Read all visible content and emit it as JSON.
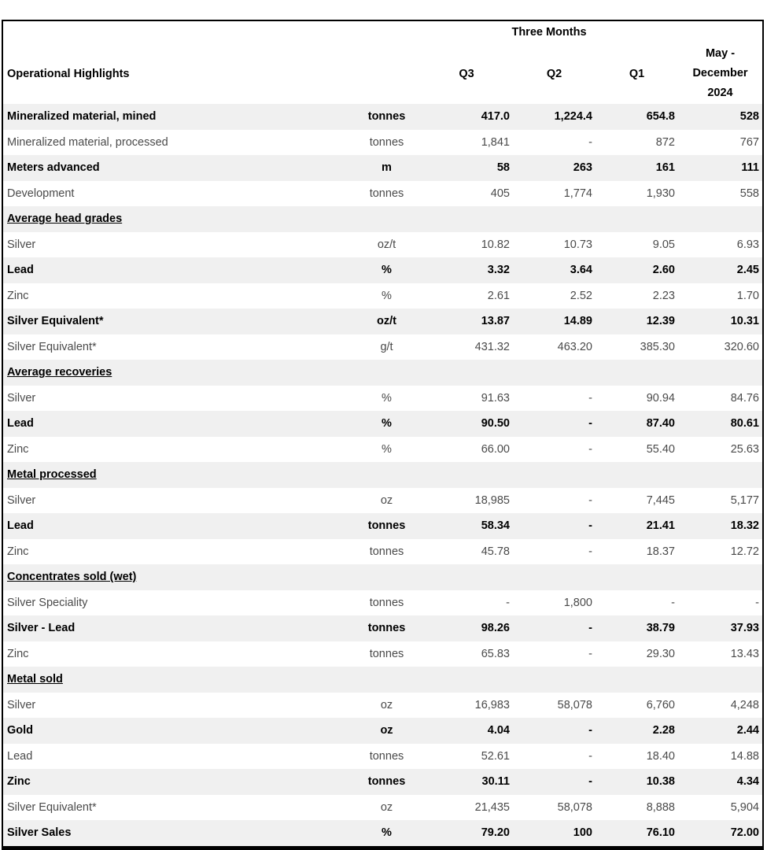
{
  "colors": {
    "stripe": "#f0f0f0",
    "regular_text": "#4a4a4a",
    "strong_text": "#000000",
    "border": "#000000"
  },
  "table": {
    "span_header": "Three Months",
    "header": {
      "label": "Operational Highlights",
      "unit": "",
      "q3": "Q3",
      "q2": "Q2",
      "q1": "Q1",
      "period_lines": [
        "May -",
        "December",
        "2024"
      ]
    },
    "rows": [
      {
        "type": "data",
        "label": "Mineralized material, mined",
        "unit": "tonnes",
        "values": [
          "417.0",
          "1,224.4",
          "654.8",
          "528"
        ],
        "strong": true
      },
      {
        "type": "data",
        "label": "Mineralized material, processed",
        "unit": "tonnes",
        "values": [
          "1,841",
          "-",
          "872",
          "767"
        ],
        "strong": false
      },
      {
        "type": "data",
        "label": "Meters advanced",
        "unit": "m",
        "values": [
          "58",
          "263",
          "161",
          "111"
        ],
        "strong": true
      },
      {
        "type": "data",
        "label": "Development",
        "unit": "tonnes",
        "values": [
          "405",
          "1,774",
          "1,930",
          "558"
        ],
        "strong": false
      },
      {
        "type": "section",
        "label": "Average head grades"
      },
      {
        "type": "data",
        "label": "Silver",
        "unit": "oz/t",
        "values": [
          "10.82",
          "10.73",
          "9.05",
          "6.93"
        ],
        "strong": false
      },
      {
        "type": "data",
        "label": "Lead",
        "unit": "%",
        "values": [
          "3.32",
          "3.64",
          "2.60",
          "2.45"
        ],
        "strong": true
      },
      {
        "type": "data",
        "label": "Zinc",
        "unit": "%",
        "values": [
          "2.61",
          "2.52",
          "2.23",
          "1.70"
        ],
        "strong": false
      },
      {
        "type": "data",
        "label": "Silver Equivalent*",
        "unit": "oz/t",
        "values": [
          "13.87",
          "14.89",
          "12.39",
          "10.31"
        ],
        "strong": true
      },
      {
        "type": "data",
        "label": "Silver Equivalent*",
        "unit": "g/t",
        "values": [
          "431.32",
          "463.20",
          "385.30",
          "320.60"
        ],
        "strong": false
      },
      {
        "type": "section",
        "label": "Average recoveries"
      },
      {
        "type": "data",
        "label": "Silver",
        "unit": "%",
        "values": [
          "91.63",
          "-",
          "90.94",
          "84.76"
        ],
        "strong": false
      },
      {
        "type": "data",
        "label": "Lead",
        "unit": "%",
        "values": [
          "90.50",
          "-",
          "87.40",
          "80.61"
        ],
        "strong": true
      },
      {
        "type": "data",
        "label": "Zinc",
        "unit": "%",
        "values": [
          "66.00",
          "-",
          "55.40",
          "25.63"
        ],
        "strong": false
      },
      {
        "type": "section",
        "label": "Metal processed"
      },
      {
        "type": "data",
        "label": "Silver",
        "unit": "oz",
        "values": [
          "18,985",
          "-",
          "7,445",
          "5,177"
        ],
        "strong": false
      },
      {
        "type": "data",
        "label": "Lead",
        "unit": "tonnes",
        "values": [
          "58.34",
          "-",
          "21.41",
          "18.32"
        ],
        "strong": true
      },
      {
        "type": "data",
        "label": "Zinc",
        "unit": "tonnes",
        "values": [
          "45.78",
          "-",
          "18.37",
          "12.72"
        ],
        "strong": false
      },
      {
        "type": "section",
        "label": "Concentrates sold (wet)"
      },
      {
        "type": "data",
        "label": "Silver Speciality",
        "unit": "tonnes",
        "values": [
          "-",
          "1,800",
          "-",
          "-"
        ],
        "strong": false
      },
      {
        "type": "data",
        "label": "Silver - Lead",
        "unit": "tonnes",
        "values": [
          "98.26",
          "-",
          "38.79",
          "37.93"
        ],
        "strong": true
      },
      {
        "type": "data",
        "label": "Zinc",
        "unit": "tonnes",
        "values": [
          "65.83",
          "-",
          "29.30",
          "13.43"
        ],
        "strong": false
      },
      {
        "type": "section",
        "label": "Metal sold"
      },
      {
        "type": "data",
        "label": "Silver",
        "unit": "oz",
        "values": [
          "16,983",
          "58,078",
          "6,760",
          "4,248"
        ],
        "strong": false
      },
      {
        "type": "data",
        "label": "Gold",
        "unit": "oz",
        "values": [
          "4.04",
          "-",
          "2.28",
          "2.44"
        ],
        "strong": true
      },
      {
        "type": "data",
        "label": "Lead",
        "unit": "tonnes",
        "values": [
          "52.61",
          "-",
          "18.40",
          "14.88"
        ],
        "strong": false
      },
      {
        "type": "data",
        "label": "Zinc",
        "unit": "tonnes",
        "values": [
          "30.11",
          "-",
          "10.38",
          "4.34"
        ],
        "strong": true
      },
      {
        "type": "data",
        "label": "Silver Equivalent*",
        "unit": "oz",
        "values": [
          "21,435",
          "58,078",
          "8,888",
          "5,904"
        ],
        "strong": false
      },
      {
        "type": "data",
        "label": "Silver Sales",
        "unit": "%",
        "values": [
          "79.20",
          "100",
          "76.10",
          "72.00"
        ],
        "strong": true
      }
    ]
  }
}
